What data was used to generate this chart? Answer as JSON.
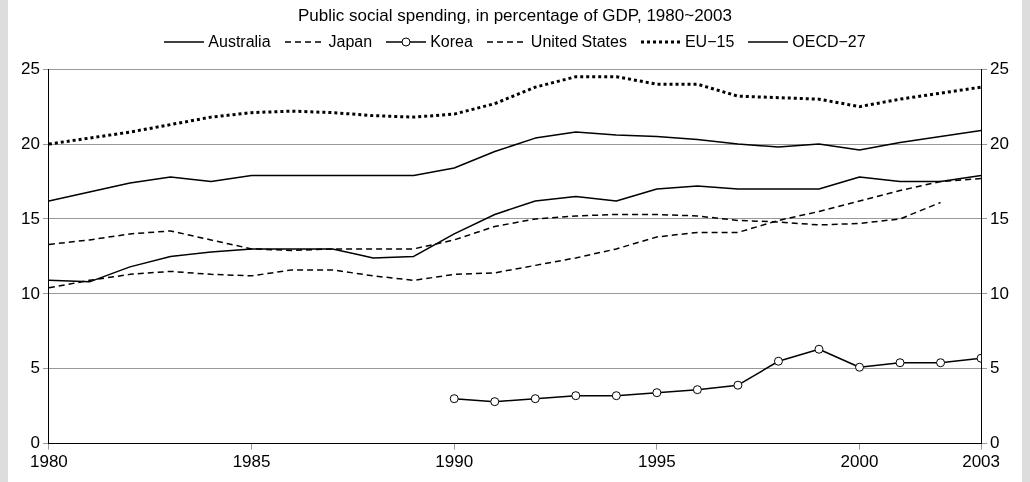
{
  "chart_data": {
    "type": "line",
    "title": "Public social spending, in percentage of GDP, 1980~2003",
    "x": [
      1980,
      1981,
      1982,
      1983,
      1984,
      1985,
      1986,
      1987,
      1988,
      1989,
      1990,
      1991,
      1992,
      1993,
      1994,
      1995,
      1996,
      1997,
      1998,
      1999,
      2000,
      2001,
      2002,
      2003
    ],
    "series": [
      {
        "name": "Australia",
        "color": "#000000",
        "line_style": "solid",
        "marker": "none",
        "values": [
          10.9,
          10.8,
          11.8,
          12.5,
          12.8,
          13.0,
          13.0,
          13.0,
          12.4,
          12.5,
          14.0,
          15.3,
          16.2,
          16.5,
          16.2,
          17.0,
          17.2,
          17.0,
          17.0,
          17.0,
          17.8,
          17.5,
          17.5,
          17.9
        ]
      },
      {
        "name": "Japan",
        "color": "#000000",
        "line_style": "dashed",
        "marker": "none",
        "values": [
          10.4,
          10.9,
          11.3,
          11.5,
          11.3,
          11.2,
          11.6,
          11.6,
          11.2,
          10.9,
          11.3,
          11.4,
          11.9,
          12.4,
          13.0,
          13.8,
          14.1,
          14.1,
          14.9,
          15.5,
          16.2,
          16.9,
          17.5,
          17.7
        ]
      },
      {
        "name": "Korea",
        "color": "#000000",
        "line_style": "solid",
        "marker": "circle",
        "values": [
          null,
          null,
          null,
          null,
          null,
          null,
          null,
          null,
          null,
          null,
          3.0,
          2.8,
          3.0,
          3.2,
          3.2,
          3.4,
          3.6,
          3.9,
          5.5,
          6.3,
          5.1,
          5.4,
          5.4,
          5.7
        ]
      },
      {
        "name": "United States",
        "color": "#000000",
        "line_style": "dashed",
        "marker": "none",
        "values": [
          13.3,
          13.6,
          14.0,
          14.2,
          13.6,
          13.0,
          12.9,
          13.0,
          13.0,
          13.0,
          13.6,
          14.5,
          15.0,
          15.2,
          15.3,
          15.3,
          15.2,
          14.9,
          14.8,
          14.6,
          14.7,
          15.0,
          16.1,
          null
        ]
      },
      {
        "name": "EU−15",
        "color": "#000000",
        "line_style": "dotted",
        "marker": "none",
        "values": [
          20.0,
          20.4,
          20.8,
          21.3,
          21.8,
          22.1,
          22.2,
          22.1,
          21.9,
          21.8,
          22.0,
          22.7,
          23.8,
          24.5,
          24.5,
          24.0,
          24.0,
          23.2,
          23.1,
          23.0,
          22.5,
          23.0,
          23.4,
          23.8
        ]
      },
      {
        "name": "OECD−27",
        "color": "#000000",
        "line_style": "solid",
        "marker": "none",
        "values": [
          16.2,
          16.8,
          17.4,
          17.8,
          17.5,
          17.9,
          17.9,
          17.9,
          17.9,
          17.9,
          18.4,
          19.5,
          20.4,
          20.8,
          20.6,
          20.5,
          20.3,
          20.0,
          19.8,
          20.0,
          19.6,
          20.1,
          20.5,
          20.9
        ]
      }
    ],
    "xlim": [
      1980,
      2003
    ],
    "xticks": [
      1980,
      1985,
      1990,
      1995,
      2000,
      2003
    ],
    "ylim": [
      0,
      25
    ],
    "yticks": [
      0,
      5,
      10,
      15,
      20,
      25
    ],
    "y2lim": [
      0,
      25
    ],
    "y2ticks": [
      0,
      5,
      10,
      15,
      20,
      25
    ],
    "grid": "y",
    "legend": "top"
  }
}
